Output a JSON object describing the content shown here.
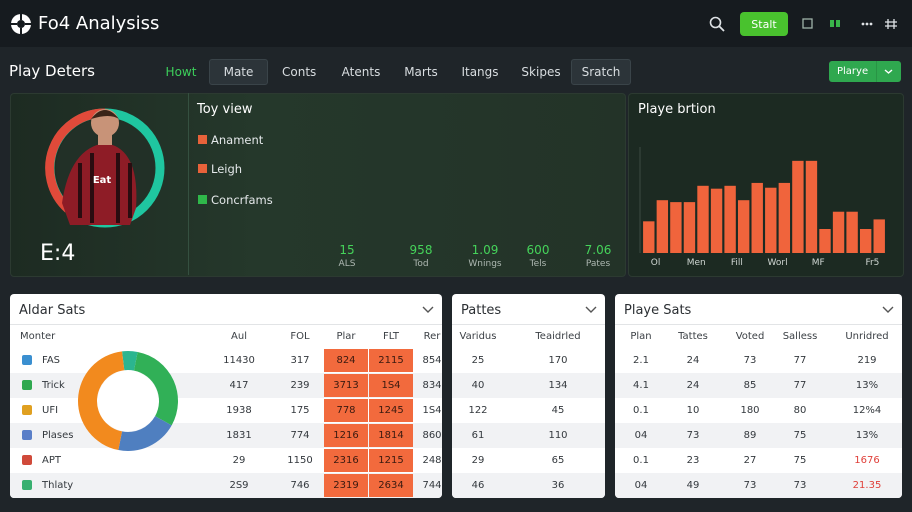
{
  "header": {
    "logo": "Fo4 Analysiss",
    "button": "Stalt"
  },
  "nav": {
    "title": "Play Deters",
    "tabs": [
      "Howt",
      "Mate",
      "Conts",
      "Atents",
      "Marts",
      "Itangs",
      "Skipes",
      "Sratch"
    ],
    "button": "Plarye"
  },
  "hero": {
    "badge": "E:4",
    "title": "Toy view",
    "legend": [
      {
        "label": "Anament",
        "color": "#e8623a"
      },
      {
        "label": "Leigh",
        "color": "#e8623a"
      },
      {
        "label": "Concrfams",
        "color": "#2fb84a"
      }
    ],
    "stats": [
      {
        "value": "15",
        "label": "ALS"
      },
      {
        "value": "958",
        "label": "Tod"
      },
      {
        "value": "1.09",
        "label": "Wnings"
      },
      {
        "value": "600",
        "label": "Tels"
      },
      {
        "value": "7.06",
        "label": "Pates"
      }
    ]
  },
  "chart_data": {
    "type": "bar",
    "title": "Playe brtion",
    "categories": [
      "Ol",
      null,
      null,
      "Men",
      null,
      null,
      "Fill",
      null,
      null,
      "Worl",
      null,
      null,
      "MF",
      null,
      null,
      null,
      "Fr5",
      null
    ],
    "values": [
      33,
      55,
      53,
      53,
      70,
      67,
      70,
      55,
      73,
      68,
      73,
      96,
      96,
      25,
      43,
      43,
      25,
      35
    ],
    "color": "#f0643c",
    "ylim": [
      0,
      100
    ]
  },
  "aldar": {
    "title": "Aldar Sats",
    "columns": [
      "Monter",
      "Aul",
      "FOL",
      "Plar",
      "FLT",
      "Rer"
    ],
    "rows": [
      [
        "FAS",
        "11430",
        "317",
        "824",
        "2115",
        "854"
      ],
      [
        "Trick",
        "417",
        "239",
        "3713",
        "1S4",
        "834"
      ],
      [
        "UFI",
        "1938",
        "175",
        "778",
        "1245",
        "1S4"
      ],
      [
        "Plases",
        "1831",
        "774",
        "1216",
        "1814",
        "860"
      ],
      [
        "APT",
        "29",
        "1150",
        "2316",
        "1215",
        "248"
      ],
      [
        "Thlaty",
        "2S9",
        "746",
        "2319",
        "2634",
        "744"
      ]
    ],
    "donut": {
      "values": [
        5,
        30,
        20,
        45
      ],
      "colors": [
        "#2bb58f",
        "#31b057",
        "#4f7fc0",
        "#f28a1e"
      ]
    }
  },
  "pattes": {
    "title": "Pattes",
    "columns": [
      "Varidus",
      "Teaidrled"
    ],
    "rows": [
      [
        "25",
        "170"
      ],
      [
        "40",
        "134"
      ],
      [
        "122",
        "45"
      ],
      [
        "61",
        "110"
      ],
      [
        "29",
        "65"
      ],
      [
        "46",
        "36"
      ]
    ]
  },
  "playe": {
    "title": "Playe Sats",
    "columns": [
      "Plan",
      "Tattes",
      "Voted",
      "Salless",
      "Unridred"
    ],
    "rows": [
      [
        "2.1",
        "24",
        "73",
        "77",
        "219"
      ],
      [
        "4.1",
        "24",
        "85",
        "77",
        "13%"
      ],
      [
        "0.1",
        "10",
        "180",
        "80",
        "12%4"
      ],
      [
        "04",
        "73",
        "89",
        "75",
        "13%"
      ],
      [
        "0.1",
        "23",
        "27",
        "75",
        "1676"
      ],
      [
        "04",
        "49",
        "73",
        "73",
        "21.35"
      ]
    ]
  }
}
